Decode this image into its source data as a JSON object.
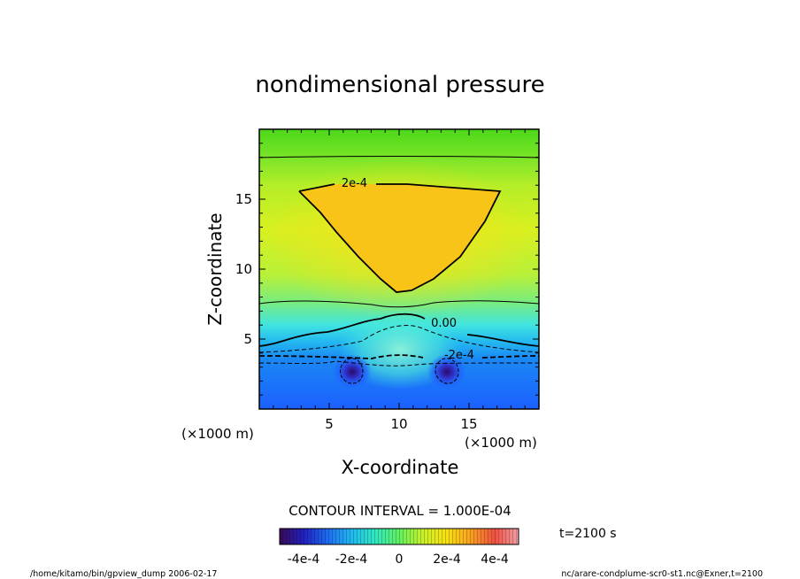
{
  "chart_data": {
    "type": "heatmap",
    "title": "nondimensional pressure",
    "xlabel": "X-coordinate",
    "ylabel": "Z-coordinate",
    "x_units": "(×1000 m)",
    "y_units": "(×1000 m)",
    "xlim": [
      0,
      20
    ],
    "ylim": [
      0,
      20
    ],
    "x_ticks": [
      5,
      10,
      15
    ],
    "y_ticks": [
      5,
      10,
      15
    ],
    "x_tick_labels": [
      "5",
      "10",
      "15"
    ],
    "y_tick_labels": [
      "5",
      "10",
      "15"
    ],
    "contour_interval_text": "CONTOUR INTERVAL = 1.000E-04",
    "contour_labels": [
      {
        "text": "2e-4",
        "x": 6.8,
        "z": 15.9
      },
      {
        "text": "0.00",
        "x": 13.2,
        "z": 5.9
      },
      {
        "text": "-2e-4",
        "x": 14.3,
        "z": 3.6
      }
    ],
    "colorbar": {
      "range": [
        -0.0005,
        0.0005
      ],
      "tick_labels": [
        "-4e-4",
        "-2e-4",
        "0",
        "2e-4",
        "4e-4"
      ],
      "colors": [
        "#3a0a55",
        "#2020c0",
        "#1e6af0",
        "#20b8f0",
        "#30e8c0",
        "#60f060",
        "#c8f028",
        "#f8e010",
        "#f8a020",
        "#f05040",
        "#f0a0a8"
      ]
    },
    "field_colors": {
      "top_band": "#68e020",
      "upper": "#c8f028",
      "positive_core": "#f8c418",
      "near_zero": "#78f0c0",
      "zero_band": "#40e8e0",
      "negative": "#1aa0f0",
      "strong_negative": "#2060ff",
      "vortex_core": "#281070"
    },
    "time_label": "t=2100 s",
    "footer_left": "/home/kitamo/bin/gpview_dump  2006-02-17",
    "footer_right": "nc/arare-condplume-scr0-st1.nc@Exner,t=2100"
  }
}
